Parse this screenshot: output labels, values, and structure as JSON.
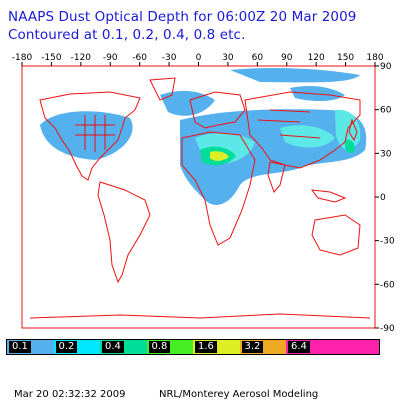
{
  "title_line1": "NAAPS Dust Optical Depth for 06:00Z 20 Mar 2009",
  "title_line2": "Contoured at 0.1, 0.2, 0.4, 0.8 etc.",
  "map": {
    "lon_ticks_top": [
      "-180",
      "-150",
      "-120",
      "-90",
      "-60",
      "-30",
      "0",
      "30",
      "60",
      "90",
      "120",
      "150",
      "180"
    ],
    "lat_ticks_right": [
      "90",
      "60",
      "30",
      "0",
      "-30",
      "-60",
      "-90"
    ],
    "colors": {
      "border": "#ee1111",
      "frame": "#000000",
      "low": "#55b0ee",
      "mid": "#5de8e8",
      "high": "#ee3311"
    }
  },
  "legend": [
    {
      "label": "0.1",
      "color": "#55b0ee"
    },
    {
      "label": "0.2",
      "color": "#00e8ff"
    },
    {
      "label": "0.4",
      "color": "#00dd99"
    },
    {
      "label": "0.8",
      "color": "#44ee22"
    },
    {
      "label": "1.6",
      "color": "#ddee22"
    },
    {
      "label": "3.2",
      "color": "#eeaa22"
    },
    {
      "label": "6.4",
      "color": "#ff22aa"
    }
  ],
  "footer": {
    "timestamp": "Mar 20 02:32:32 2009",
    "credit": "NRL/Monterey Aerosol Modeling"
  }
}
